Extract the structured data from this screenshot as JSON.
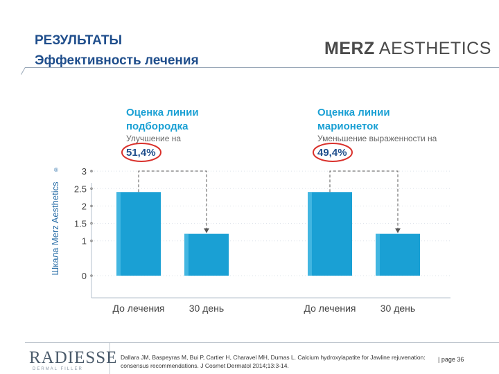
{
  "header": {
    "title_line1": "РЕЗУЛЬТАТЫ",
    "title_line2": "Эффективность лечения",
    "logo_bold": "MERZ",
    "logo_rest": " AESTHETICS"
  },
  "chart_data": {
    "type": "bar",
    "ylabel": "Шкала Merz Aesthetics",
    "ylabel_sup": "®",
    "ylim": [
      0,
      3
    ],
    "yticks": [
      "3",
      "2.5",
      "2",
      "1.5",
      "1",
      "0"
    ],
    "groups": [
      {
        "heading1": "Оценка линии",
        "heading2": "подбородка",
        "subheading": "Улучшение на",
        "highlight": "51,4%",
        "categories": [
          "До лечения",
          "30 день"
        ],
        "values": [
          2.4,
          1.2
        ]
      },
      {
        "heading1": "Оценка линии",
        "heading2": "марионеток",
        "subheading": "Уменьшение выраженности на",
        "highlight": "49,4%",
        "categories": [
          "До лечения",
          "30 день"
        ],
        "values": [
          2.4,
          1.2
        ]
      }
    ],
    "colors": {
      "bar": "#1aa0d4",
      "heading": "#1aa0d4",
      "highlight": "#1f4e8c",
      "circle": "#d9302b"
    }
  },
  "footer": {
    "brand": "RADIESSE",
    "brand_sub": "DERMAL FILLER",
    "citation": "Dallara JM, Baspeyras M, Bui P, Cartier H, Charavel MH, Dumas L. Calcium hydroxylapatite for Jawline rejuvenation: consensus recommendations. J Cosmet Dermatol 2014;13:3-14.",
    "page": "| page 36"
  }
}
